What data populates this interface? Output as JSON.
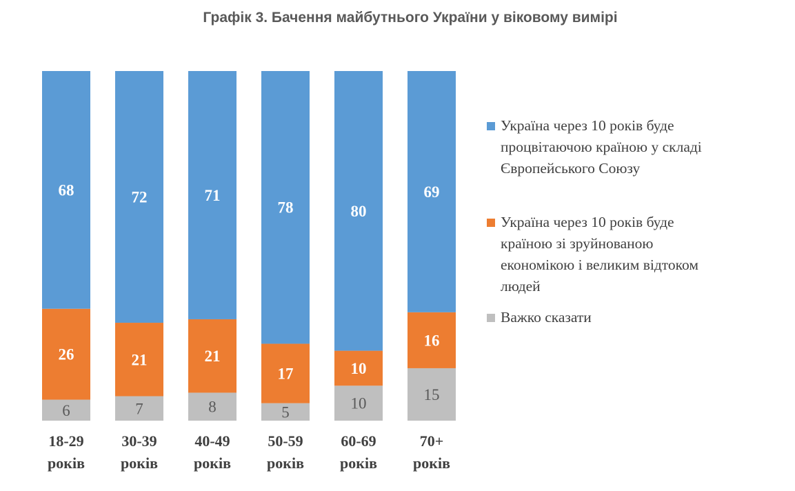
{
  "title": "Графік 3. Бачення майбутнього України у віковому вимірі",
  "chart_data": {
    "type": "bar",
    "stacked": true,
    "categories": [
      "18-29 років",
      "30-39 років",
      "40-49 років",
      "50-59 років",
      "60-69 років",
      "70+ років"
    ],
    "category_lines": [
      [
        "18-29",
        "років"
      ],
      [
        "30-39",
        "років"
      ],
      [
        "40-49",
        "років"
      ],
      [
        "50-59",
        "років"
      ],
      [
        "60-69",
        "років"
      ],
      [
        "70+",
        "років"
      ]
    ],
    "series": [
      {
        "name": "Україна через 10 років буде процвітаючою країною у складі Європейського Союзу",
        "values": [
          68,
          72,
          71,
          78,
          80,
          69
        ],
        "color": "#5B9BD5"
      },
      {
        "name": "Україна через 10 років буде країною зі зруйнованою економікою і великим відтоком людей",
        "values": [
          26,
          21,
          21,
          17,
          10,
          16
        ],
        "color": "#ED7D31"
      },
      {
        "name": "Важко сказати",
        "values": [
          6,
          7,
          8,
          5,
          10,
          15
        ],
        "color": "#BFBFBF"
      }
    ],
    "legend_position": "right",
    "grid": false
  },
  "legend": [
    {
      "lines": [
        "Україна через 10 років буде",
        "процвітаючою країною у складі",
        "Європейського Союзу"
      ],
      "color": "#5B9BD5"
    },
    {
      "lines": [
        "Україна через 10 років буде",
        "країною зі зруйнованою",
        "економікою і великим відтоком",
        "людей"
      ],
      "color": "#ED7D31"
    },
    {
      "lines": [
        "Важко сказати"
      ],
      "color": "#BFBFBF"
    }
  ]
}
